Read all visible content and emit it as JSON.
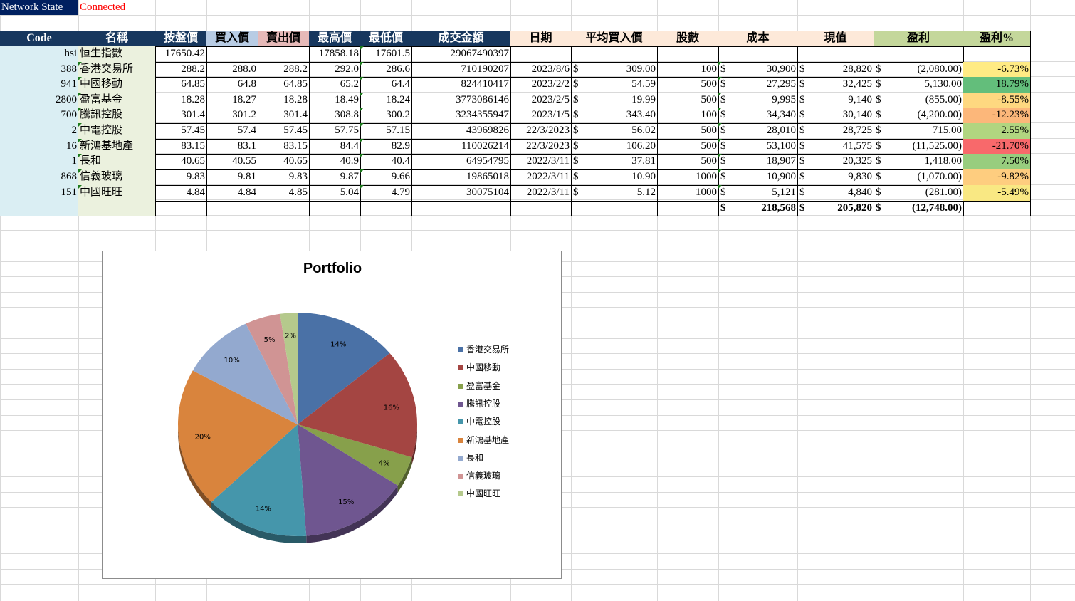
{
  "status": {
    "label": "Network State",
    "value": "Connected",
    "value_color": "#ff0000"
  },
  "headers": [
    "Code",
    "名稱",
    "按盤價",
    "買入價",
    "賣出價",
    "最高價",
    "最低價",
    "成交金額",
    "日期",
    "平均買入價",
    "股數",
    "成本",
    "現值",
    "盈利",
    "盈利%"
  ],
  "rows": [
    [
      "hsi",
      "恒生指數",
      "17650.42",
      "",
      "",
      "17858.18",
      "17601.5",
      "29067490397",
      "",
      "",
      "",
      "",
      "",
      "",
      ""
    ],
    [
      "388",
      "香港交易所",
      "288.2",
      "288.0",
      "288.2",
      "292.0",
      "286.6",
      "710190207",
      "2023/8/6",
      "309.00",
      "100",
      "30,900",
      "28,820",
      "(2,080.00)",
      "-6.73%"
    ],
    [
      "941",
      "中國移動",
      "64.85",
      "64.8",
      "64.85",
      "65.2",
      "64.4",
      "824410417",
      "2023/2/2",
      "54.59",
      "500",
      "27,295",
      "32,425",
      "5,130.00",
      "18.79%"
    ],
    [
      "2800",
      "盈富基金",
      "18.28",
      "18.27",
      "18.28",
      "18.49",
      "18.24",
      "3773086146",
      "2023/2/5",
      "19.99",
      "500",
      "9,995",
      "9,140",
      "(855.00)",
      "-8.55%"
    ],
    [
      "700",
      "騰訊控股",
      "301.4",
      "301.2",
      "301.4",
      "308.8",
      "300.2",
      "3234355947",
      "2023/1/5",
      "343.40",
      "100",
      "34,340",
      "30,140",
      "(4,200.00)",
      "-12.23%"
    ],
    [
      "2",
      "中電控股",
      "57.45",
      "57.4",
      "57.45",
      "57.75",
      "57.15",
      "43969826",
      "22/3/2023",
      "56.02",
      "500",
      "28,010",
      "28,725",
      "715.00",
      "2.55%"
    ],
    [
      "16",
      "新鴻基地產",
      "83.15",
      "83.1",
      "83.15",
      "84.4",
      "82.9",
      "110026214",
      "22/3/2023",
      "106.20",
      "500",
      "53,100",
      "41,575",
      "(11,525.00)",
      "-21.70%"
    ],
    [
      "1",
      "長和",
      "40.65",
      "40.55",
      "40.65",
      "40.9",
      "40.4",
      "64954795",
      "2022/3/11",
      "37.81",
      "500",
      "18,907",
      "20,325",
      "1,418.00",
      "7.50%"
    ],
    [
      "868",
      "信義玻璃",
      "9.83",
      "9.81",
      "9.83",
      "9.87",
      "9.66",
      "19865018",
      "2022/3/11",
      "10.90",
      "1000",
      "10,900",
      "9,830",
      "(1,070.00)",
      "-9.82%"
    ],
    [
      "151",
      "中國旺旺",
      "4.84",
      "4.84",
      "4.85",
      "5.04",
      "4.79",
      "30075104",
      "2022/3/11",
      "5.12",
      "1000",
      "5,121",
      "4,840",
      "(281.00)",
      "-5.49%"
    ]
  ],
  "pct_colors": [
    "",
    "#ffeb84",
    "#63be7b",
    "#fed880",
    "#fcb77a",
    "#b1d580",
    "#f8696b",
    "#98cd7e",
    "#fecd7f",
    "#f9e883"
  ],
  "totals": {
    "cost": "218,568",
    "value": "205,820",
    "profit": "(12,748.00)"
  },
  "currency": "$",
  "colors": {
    "header_dark": "#17375e",
    "buy": "#b8cce4",
    "sell": "#e6b9b8",
    "peach": "#fde9d9",
    "green": "#c4d79b",
    "code_bg": "#daeef3",
    "name_bg": "#ebf1de"
  },
  "chart_data": {
    "type": "pie",
    "title": "Portfolio",
    "legend": "right",
    "categories": [
      "香港交易所",
      "中國移動",
      "盈富基金",
      "騰訊控股",
      "中電控股",
      "新鴻基地產",
      "長和",
      "信義玻璃",
      "中國旺旺"
    ],
    "values": [
      28820,
      32425,
      9140,
      30140,
      28725,
      41575,
      20325,
      9830,
      4840
    ],
    "labels": [
      "14%",
      "16%",
      "4%",
      "15%",
      "14%",
      "20%",
      "10%",
      "5%",
      "2%"
    ],
    "colors": [
      "#4a71a6",
      "#a44542",
      "#87a04b",
      "#6f5690",
      "#4596ab",
      "#d9843d",
      "#93a9cf",
      "#d09494",
      "#b5c98c"
    ]
  }
}
